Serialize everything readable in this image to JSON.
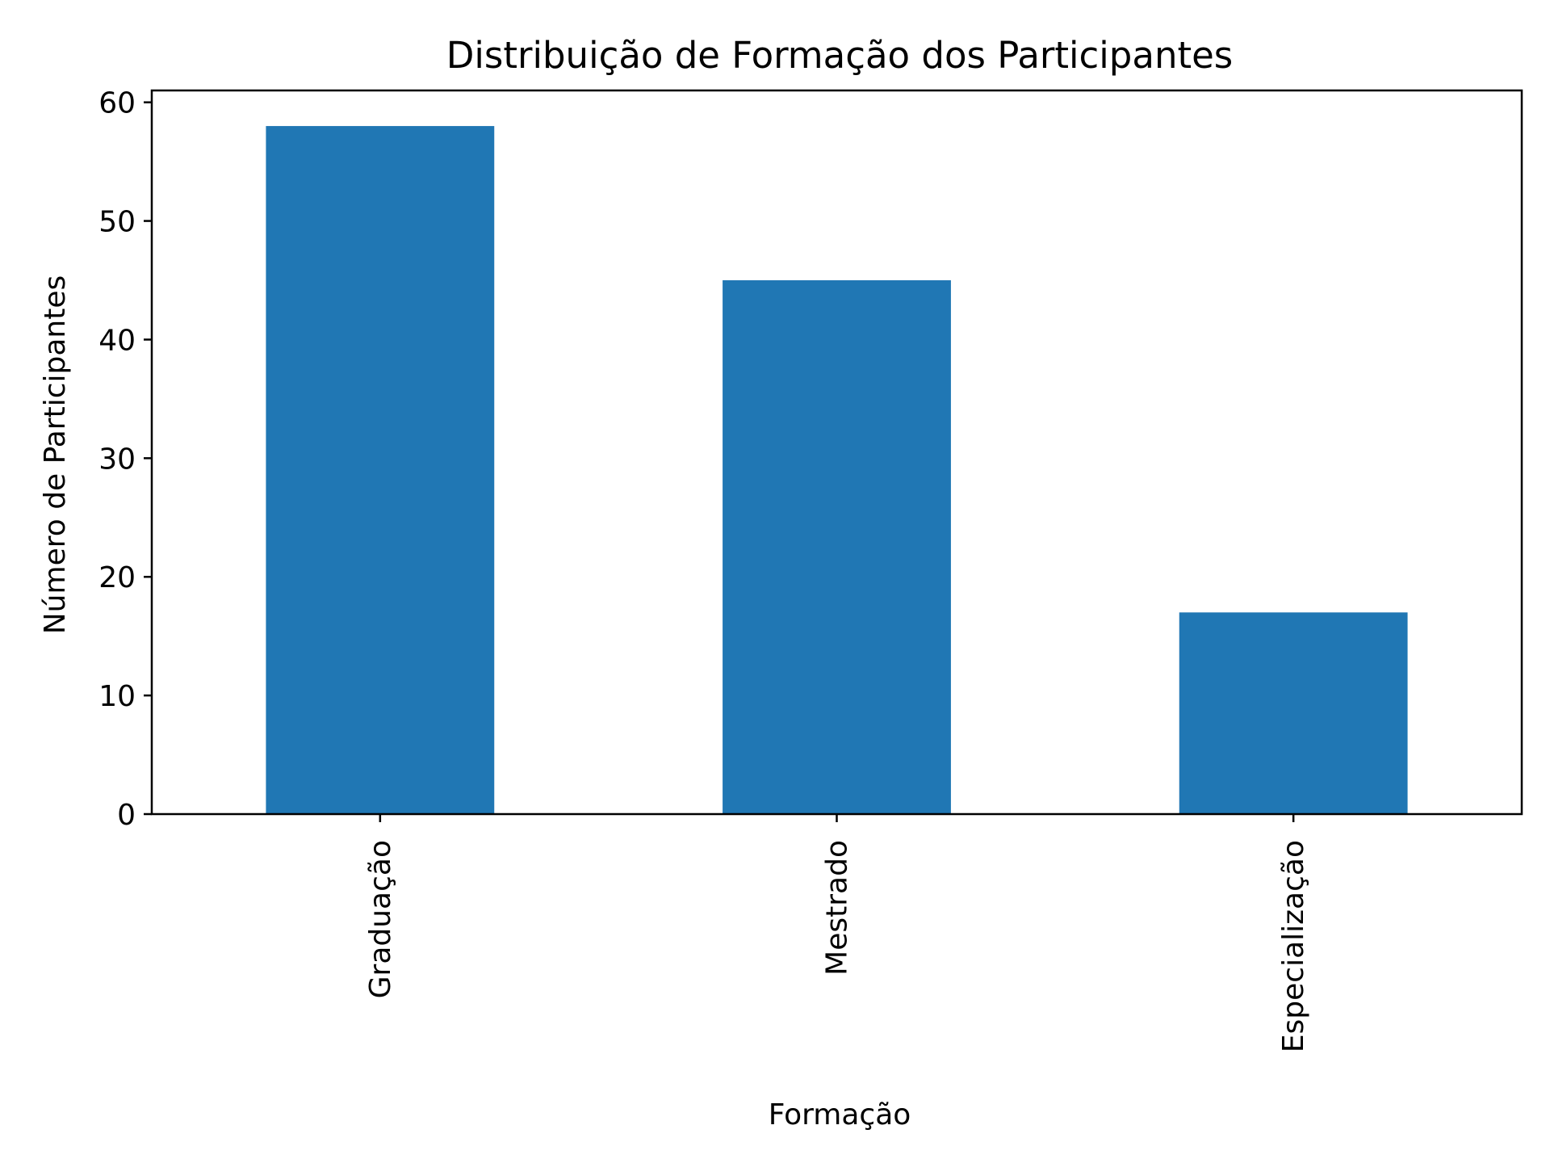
{
  "chart_data": {
    "type": "bar",
    "title": "Distribuição de Formação dos Participantes",
    "xlabel": "Formação",
    "ylabel": "Número de Participantes",
    "categories": [
      "Graduação",
      "Mestrado",
      "Especialização"
    ],
    "values": [
      58,
      45,
      17
    ],
    "ylim": [
      0,
      61
    ],
    "yticks": [
      0,
      10,
      20,
      30,
      40,
      50,
      60
    ],
    "grid": false,
    "legend": "none",
    "colors": {
      "bar": "#2077b4",
      "axis": "#000000",
      "background": "#ffffff"
    }
  }
}
